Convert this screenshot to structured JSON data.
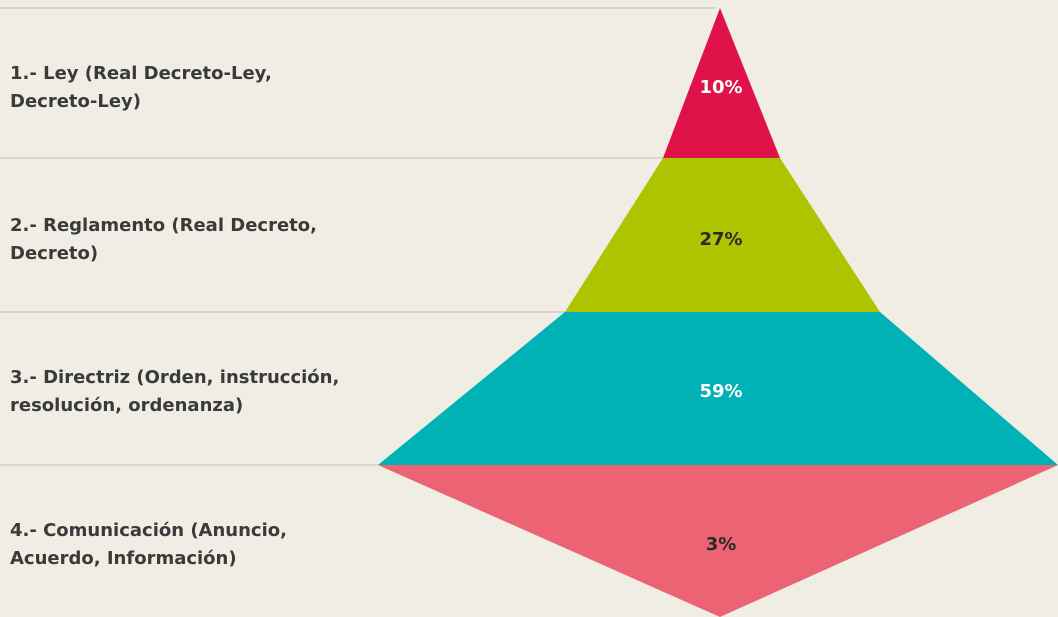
{
  "levels": [
    {
      "label_lines": [
        "1.- Ley (Real Decreto-Ley,",
        "Decreto-Ley)"
      ],
      "value": "10%",
      "color": "#e0124a",
      "text_color": "#ffffff"
    },
    {
      "label_lines": [
        "2.- Reglamento (Real Decreto,",
        "Decreto)"
      ],
      "value": "27%",
      "color": "#afc400",
      "text_color": "#2a2a2a"
    },
    {
      "label_lines": [
        "3.- Directriz (Orden, instrucción,",
        "resolución, ordenanza)"
      ],
      "value": "59%",
      "color": "#00b1b6",
      "text_color": "#ffffff"
    },
    {
      "label_lines": [
        "4.- Comunicación (Anuncio,",
        "Acuerdo, Información)"
      ],
      "value": "3%",
      "color": "#ec6473",
      "text_color": "#2a2a2a"
    }
  ]
}
